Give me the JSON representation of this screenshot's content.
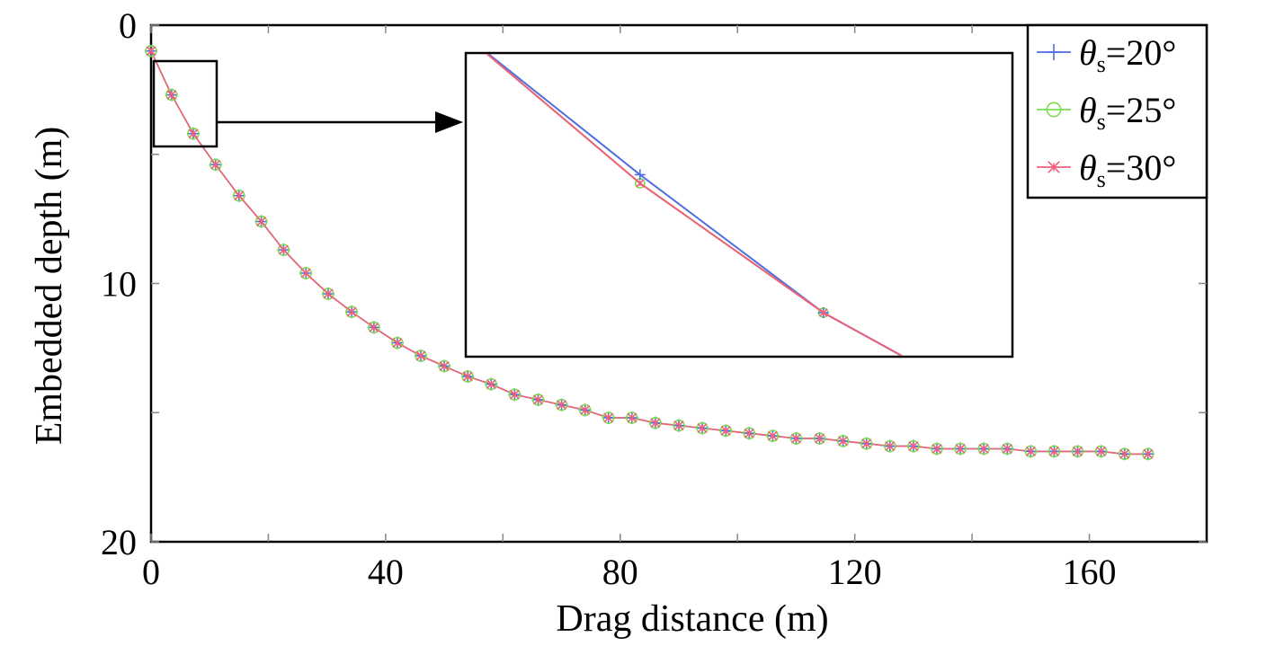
{
  "chart_data": {
    "type": "line",
    "xlabel": "Drag distance (m)",
    "ylabel": "Embedded depth (m)",
    "xlim": [
      0,
      180
    ],
    "ylim": [
      20,
      0
    ],
    "y_axis_inverted": true,
    "x_ticks": [
      0,
      40,
      80,
      120,
      160
    ],
    "x_tick_labels": [
      "0",
      "40",
      "80",
      "120",
      "160"
    ],
    "y_ticks": [
      0,
      10,
      20
    ],
    "y_tick_labels": [
      "0",
      "10",
      "20"
    ],
    "grid": false,
    "legend_position": "top-right",
    "x": [
      0,
      3.5,
      7.2,
      11,
      15,
      18.8,
      22.6,
      26.4,
      30.2,
      34.2,
      38,
      42,
      46,
      50,
      54,
      58,
      62,
      66,
      70,
      74,
      78,
      82,
      86,
      90,
      94,
      98,
      102,
      106,
      110,
      114,
      118,
      122,
      126,
      130,
      134,
      138,
      142,
      146,
      150,
      154,
      158,
      162,
      166,
      170
    ],
    "y": [
      1.0,
      2.7,
      4.2,
      5.4,
      6.6,
      7.6,
      8.7,
      9.6,
      10.4,
      11.1,
      11.7,
      12.3,
      12.8,
      13.2,
      13.6,
      13.9,
      14.3,
      14.5,
      14.7,
      14.9,
      15.2,
      15.2,
      15.4,
      15.5,
      15.6,
      15.7,
      15.8,
      15.9,
      16.0,
      16.0,
      16.1,
      16.2,
      16.3,
      16.3,
      16.4,
      16.4,
      16.4,
      16.4,
      16.5,
      16.5,
      16.5,
      16.5,
      16.6,
      16.6
    ],
    "series": [
      {
        "legend": {
          "symbol": "θ",
          "sub": "s",
          "value": "=20°"
        },
        "color": "#4f6fe0",
        "marker": "plus"
      },
      {
        "legend": {
          "symbol": "θ",
          "sub": "s",
          "value": "=25°"
        },
        "color": "#7fdc50",
        "marker": "circle"
      },
      {
        "legend": {
          "symbol": "θ",
          "sub": "s",
          "value": "=30°"
        },
        "color": "#f0607a",
        "marker": "star"
      }
    ],
    "inset": {
      "zoom_xlim": [
        0,
        11
      ],
      "zoom_ylim": [
        1.2,
        4.7
      ],
      "points": [
        {
          "x": [
            0,
            3.5,
            7.2,
            11
          ],
          "y": [
            1.0,
            2.6,
            4.2,
            5.4
          ]
        },
        {
          "x": [
            0,
            3.5,
            7.2,
            11
          ],
          "y": [
            1.0,
            2.7,
            4.2,
            5.4
          ]
        },
        {
          "x": [
            0,
            3.5,
            7.2,
            11
          ],
          "y": [
            1.0,
            2.7,
            4.2,
            5.4
          ]
        }
      ]
    }
  }
}
